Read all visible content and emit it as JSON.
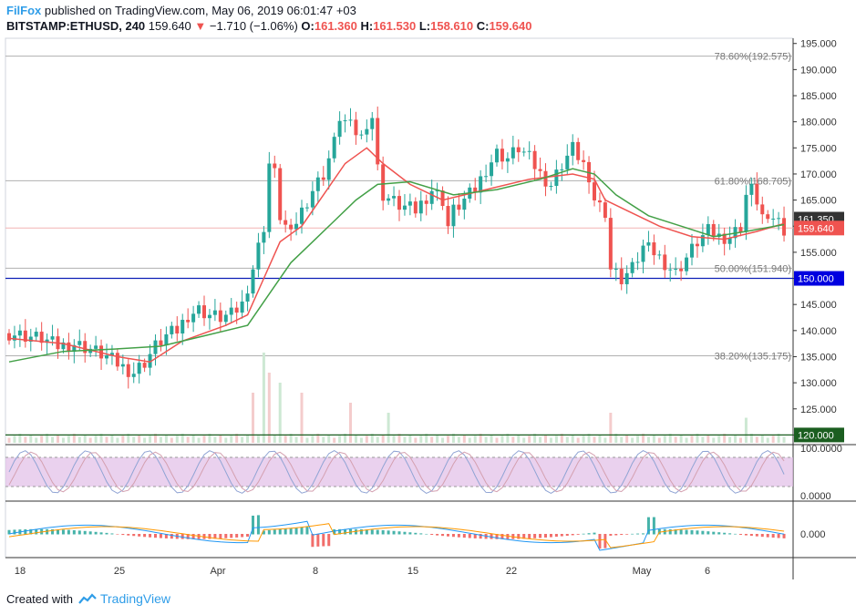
{
  "header": {
    "author": "FilFox",
    "published_text": "published on TradingView.com, May 06, 2019 06:01:47 +03",
    "symbol": "BITSTAMP:ETHUSD, 240",
    "last": "159.640",
    "change": "−1.710 (−1.06%)",
    "open_label": "O:",
    "open": "161.360",
    "high_label": "H:",
    "high": "161.530",
    "low_label": "L:",
    "low": "158.610",
    "close_label": "C:",
    "close": "159.640"
  },
  "footer": {
    "created_with": "Created with",
    "brand": "TradingView"
  },
  "colors": {
    "up": "#26a69a",
    "down": "#ef5350",
    "ema_fast": "#ef5350",
    "ema_slow": "#43a047",
    "horizontal_line": "#0d1fb5",
    "green_line": "#1b5e20",
    "rsi_band": "#e1bee7",
    "fib": "#b0b0b0",
    "current_price_tag": "#ef5350",
    "last_close_tag": "#333333"
  },
  "chart_data": {
    "type": "candlestick",
    "x_ticks": [
      "18",
      "25",
      "Apr",
      "8",
      "15",
      "22",
      "May",
      "6"
    ],
    "y_axis": {
      "ticks": [
        "195.000",
        "190.000",
        "185.000",
        "180.000",
        "175.000",
        "170.000",
        "165.000",
        "160.000",
        "155.000",
        "150.000",
        "145.000",
        "140.000",
        "135.000",
        "130.000",
        "125.000",
        "120.000"
      ],
      "range": [
        118.5,
        196
      ]
    },
    "price_tags": {
      "tag1": "161.350",
      "tag2": "159.640",
      "tag3": "150.000",
      "tag4": "120.000"
    },
    "fibonacci": [
      {
        "label": "78.60%(192.575)",
        "value": 192.575
      },
      {
        "label": "61.80%(168.705)",
        "value": 168.705
      },
      {
        "label": "50.00%(151.940)",
        "value": 151.94
      },
      {
        "label": "38.20%(135.175)",
        "value": 135.175
      }
    ],
    "horizontal_lines": [
      150.0,
      120.0
    ],
    "price_path": [
      [
        0,
        139.5
      ],
      [
        3,
        139
      ],
      [
        6,
        138.5
      ],
      [
        9,
        137
      ],
      [
        12,
        137.5
      ],
      [
        15,
        136.5
      ],
      [
        18,
        135
      ],
      [
        21,
        133
      ],
      [
        23,
        132
      ],
      [
        25,
        134
      ],
      [
        27,
        137
      ],
      [
        29,
        139
      ],
      [
        31,
        140
      ],
      [
        33,
        143
      ],
      [
        35,
        144
      ],
      [
        37,
        143
      ],
      [
        39,
        142.5
      ],
      [
        41,
        143
      ],
      [
        43,
        145
      ],
      [
        45,
        152
      ],
      [
        47,
        160
      ],
      [
        48,
        172
      ],
      [
        49,
        170
      ],
      [
        50,
        162
      ],
      [
        51,
        160
      ],
      [
        52,
        158
      ],
      [
        53,
        161
      ],
      [
        54,
        163
      ],
      [
        56,
        167
      ],
      [
        58,
        170
      ],
      [
        60,
        176
      ],
      [
        61,
        181
      ],
      [
        62,
        180
      ],
      [
        63,
        179
      ],
      [
        64,
        178
      ],
      [
        65,
        177
      ],
      [
        66,
        180
      ],
      [
        67,
        181
      ],
      [
        68,
        171
      ],
      [
        69,
        166
      ],
      [
        72,
        164
      ],
      [
        75,
        163
      ],
      [
        78,
        167
      ],
      [
        80,
        165
      ],
      [
        81,
        160
      ],
      [
        82,
        163
      ],
      [
        84,
        165
      ],
      [
        86,
        167
      ],
      [
        88,
        171
      ],
      [
        90,
        174
      ],
      [
        92,
        173
      ],
      [
        94,
        175
      ],
      [
        96,
        173
      ],
      [
        98,
        170
      ],
      [
        100,
        168
      ],
      [
        102,
        172
      ],
      [
        104,
        175
      ],
      [
        106,
        172
      ],
      [
        107,
        167
      ],
      [
        109,
        164
      ],
      [
        110,
        163
      ],
      [
        111,
        152
      ],
      [
        112,
        151
      ],
      [
        113,
        150
      ],
      [
        115,
        152
      ],
      [
        117,
        156
      ],
      [
        119,
        155
      ],
      [
        121,
        153
      ],
      [
        123,
        151
      ],
      [
        125,
        154
      ],
      [
        127,
        157
      ],
      [
        129,
        159
      ],
      [
        131,
        158
      ],
      [
        133,
        158
      ],
      [
        135,
        160
      ],
      [
        136,
        166
      ],
      [
        137,
        167
      ],
      [
        138,
        165
      ],
      [
        139,
        162
      ],
      [
        140,
        160
      ],
      [
        141,
        162
      ],
      [
        142,
        161
      ],
      [
        143,
        159.6
      ]
    ],
    "ema_fast": [
      [
        0,
        138.5
      ],
      [
        10,
        137.5
      ],
      [
        20,
        135
      ],
      [
        26,
        134
      ],
      [
        32,
        138
      ],
      [
        40,
        141
      ],
      [
        44,
        143
      ],
      [
        47,
        150
      ],
      [
        50,
        157
      ],
      [
        54,
        160
      ],
      [
        58,
        166
      ],
      [
        62,
        172
      ],
      [
        66,
        175
      ],
      [
        69,
        172
      ],
      [
        74,
        168
      ],
      [
        80,
        165
      ],
      [
        88,
        167
      ],
      [
        96,
        169
      ],
      [
        104,
        170
      ],
      [
        108,
        169
      ],
      [
        110,
        165
      ],
      [
        114,
        163
      ],
      [
        120,
        160
      ],
      [
        126,
        158
      ],
      [
        132,
        157.5
      ],
      [
        138,
        159
      ],
      [
        143,
        160.5
      ]
    ],
    "ema_slow": [
      [
        0,
        134
      ],
      [
        10,
        136
      ],
      [
        20,
        136.5
      ],
      [
        28,
        137
      ],
      [
        36,
        139
      ],
      [
        44,
        141
      ],
      [
        48,
        147
      ],
      [
        52,
        153
      ],
      [
        56,
        157
      ],
      [
        60,
        161
      ],
      [
        64,
        165
      ],
      [
        68,
        168
      ],
      [
        74,
        168.5
      ],
      [
        82,
        166
      ],
      [
        90,
        167
      ],
      [
        98,
        169
      ],
      [
        104,
        171
      ],
      [
        108,
        170
      ],
      [
        112,
        166
      ],
      [
        118,
        162
      ],
      [
        124,
        160
      ],
      [
        130,
        158
      ],
      [
        136,
        159
      ],
      [
        143,
        160.3
      ]
    ],
    "volume_spikes": [
      [
        45,
        0.5
      ],
      [
        47,
        0.9
      ],
      [
        48,
        0.7
      ],
      [
        50,
        0.6
      ],
      [
        54,
        0.5
      ],
      [
        63,
        0.4
      ],
      [
        70,
        0.3
      ],
      [
        111,
        0.3
      ],
      [
        136,
        0.25
      ]
    ],
    "rsi": {
      "ticks": [
        "100.0000",
        "0.0000"
      ],
      "band": [
        30,
        70
      ]
    },
    "macd": {
      "ticks": [
        "0.000"
      ]
    }
  }
}
